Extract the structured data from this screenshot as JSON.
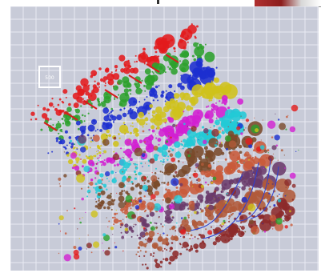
{
  "figure": {
    "scale_box_label": "500",
    "side_label": "",
    "colors": {
      "background": "#c8cbd8",
      "grid": "#e8eaf2",
      "border": "#ffffff",
      "arrows_red": "#d81c1c",
      "arrows_blue": "#2d3fd1",
      "palette": [
        "#e31a1c",
        "#2ca02c",
        "#1c2fcf",
        "#cfc21a",
        "#d21fd2",
        "#22c9d6",
        "#7a4a2a",
        "#c85a3a",
        "#6a3a6a",
        "#b05a3a",
        "#8c2a2a"
      ]
    },
    "bands": [
      {
        "color": "#e31a1c"
      },
      {
        "color": "#2ca02c"
      },
      {
        "color": "#1c2fcf"
      },
      {
        "color": "#cfc21a"
      },
      {
        "color": "#d21fd2"
      },
      {
        "color": "#22c9d6"
      },
      {
        "color": "#7a4a2a"
      },
      {
        "color": "#c85a3a"
      },
      {
        "color": "#6a3a6a"
      },
      {
        "color": "#b05a3a"
      },
      {
        "color": "#8c2a2a"
      }
    ]
  }
}
